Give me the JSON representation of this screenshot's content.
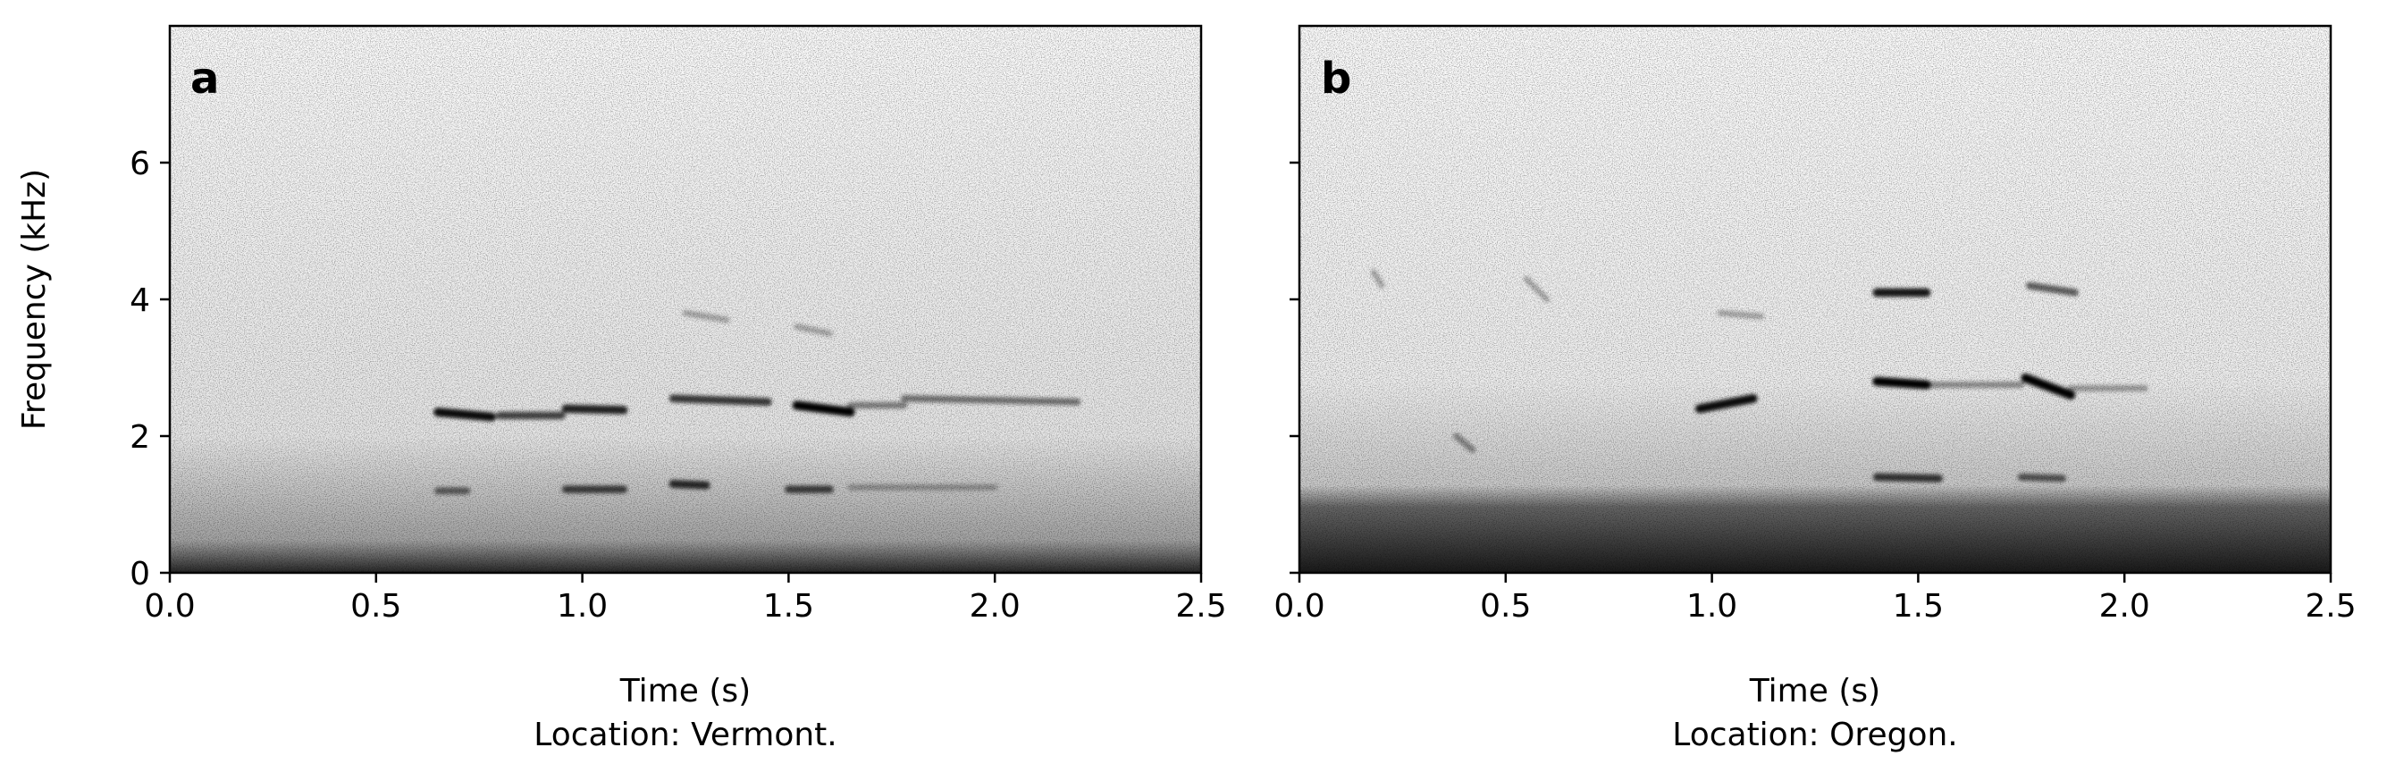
{
  "figure": {
    "y_axis_label": "Frequency (kHz)"
  },
  "chart_data": [
    {
      "type": "heatmap",
      "panel_label": "a",
      "xlabel": "Time (s)",
      "caption": "Location: Vermont.",
      "ylabel": "Frequency (kHz)",
      "xlim": [
        0.0,
        2.5
      ],
      "ylim": [
        0,
        8
      ],
      "x_ticks": [
        0.0,
        0.5,
        1.0,
        1.5,
        2.0,
        2.5
      ],
      "x_tick_labels": [
        "0.0",
        "0.5",
        "1.0",
        "1.5",
        "2.0",
        "2.5"
      ],
      "y_ticks": [
        0,
        2,
        4,
        6
      ],
      "y_tick_labels": [
        "0",
        "2",
        "4",
        "6"
      ],
      "colormap": "greys",
      "low_frequency_noise_khz": [
        0,
        0.5
      ],
      "energy_traces": [
        {
          "t": [
            0.65,
            0.78
          ],
          "f": [
            2.35,
            2.28
          ],
          "intensity": 0.95
        },
        {
          "t": [
            0.8,
            0.95
          ],
          "f": [
            2.3,
            2.3
          ],
          "intensity": 0.7
        },
        {
          "t": [
            0.96,
            1.1
          ],
          "f": [
            2.4,
            2.38
          ],
          "intensity": 0.85
        },
        {
          "t": [
            1.22,
            1.45
          ],
          "f": [
            2.55,
            2.5
          ],
          "intensity": 0.75
        },
        {
          "t": [
            1.52,
            1.65
          ],
          "f": [
            2.45,
            2.35
          ],
          "intensity": 1.0
        },
        {
          "t": [
            1.65,
            1.78
          ],
          "f": [
            2.45,
            2.45
          ],
          "intensity": 0.45
        },
        {
          "t": [
            1.78,
            2.2
          ],
          "f": [
            2.55,
            2.5
          ],
          "intensity": 0.5
        },
        {
          "t": [
            0.65,
            0.72
          ],
          "f": [
            1.2,
            1.2
          ],
          "intensity": 0.55
        },
        {
          "t": [
            0.96,
            1.1
          ],
          "f": [
            1.22,
            1.22
          ],
          "intensity": 0.7
        },
        {
          "t": [
            1.22,
            1.3
          ],
          "f": [
            1.3,
            1.28
          ],
          "intensity": 0.8
        },
        {
          "t": [
            1.5,
            1.6
          ],
          "f": [
            1.22,
            1.22
          ],
          "intensity": 0.7
        },
        {
          "t": [
            1.65,
            2.0
          ],
          "f": [
            1.25,
            1.25
          ],
          "intensity": 0.3
        },
        {
          "t": [
            1.25,
            1.35
          ],
          "f": [
            3.8,
            3.7
          ],
          "intensity": 0.3
        },
        {
          "t": [
            1.52,
            1.6
          ],
          "f": [
            3.6,
            3.5
          ],
          "intensity": 0.3
        }
      ]
    },
    {
      "type": "heatmap",
      "panel_label": "b",
      "xlabel": "Time (s)",
      "caption": "Location: Oregon.",
      "ylabel": "",
      "xlim": [
        0.0,
        2.5
      ],
      "ylim": [
        0,
        8
      ],
      "x_ticks": [
        0.0,
        0.5,
        1.0,
        1.5,
        2.0,
        2.5
      ],
      "x_tick_labels": [
        "0.0",
        "0.5",
        "1.0",
        "1.5",
        "2.0",
        "2.5"
      ],
      "y_ticks": [
        0,
        2,
        4,
        6
      ],
      "y_tick_labels": [
        "",
        "",
        "",
        ""
      ],
      "colormap": "greys",
      "low_frequency_noise_khz": [
        0,
        1.0
      ],
      "energy_traces": [
        {
          "t": [
            0.97,
            1.1
          ],
          "f": [
            2.4,
            2.55
          ],
          "intensity": 0.95
        },
        {
          "t": [
            1.4,
            1.52
          ],
          "f": [
            2.8,
            2.75
          ],
          "intensity": 1.0
        },
        {
          "t": [
            1.52,
            1.75
          ],
          "f": [
            2.75,
            2.75
          ],
          "intensity": 0.4
        },
        {
          "t": [
            1.76,
            1.87
          ],
          "f": [
            2.85,
            2.6
          ],
          "intensity": 1.0
        },
        {
          "t": [
            1.87,
            2.05
          ],
          "f": [
            2.7,
            2.7
          ],
          "intensity": 0.35
        },
        {
          "t": [
            1.4,
            1.52
          ],
          "f": [
            4.1,
            4.1
          ],
          "intensity": 0.9
        },
        {
          "t": [
            1.77,
            1.88
          ],
          "f": [
            4.2,
            4.1
          ],
          "intensity": 0.6
        },
        {
          "t": [
            1.4,
            1.55
          ],
          "f": [
            1.4,
            1.38
          ],
          "intensity": 0.75
        },
        {
          "t": [
            1.75,
            1.85
          ],
          "f": [
            1.4,
            1.38
          ],
          "intensity": 0.6
        },
        {
          "t": [
            0.18,
            0.2
          ],
          "f": [
            4.4,
            4.2
          ],
          "intensity": 0.3
        },
        {
          "t": [
            0.55,
            0.6
          ],
          "f": [
            4.3,
            4.0
          ],
          "intensity": 0.3
        },
        {
          "t": [
            0.38,
            0.42
          ],
          "f": [
            2.0,
            1.8
          ],
          "intensity": 0.4
        },
        {
          "t": [
            1.02,
            1.12
          ],
          "f": [
            3.8,
            3.75
          ],
          "intensity": 0.3
        }
      ]
    }
  ]
}
